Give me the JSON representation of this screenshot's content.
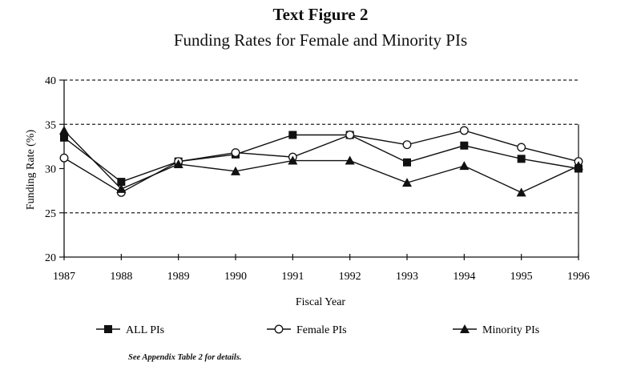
{
  "header": {
    "title": "Text Figure 2",
    "subtitle": "Funding Rates for Female and Minority PIs"
  },
  "footnote": "See Appendix Table 2 for details.",
  "chart_data": {
    "type": "line",
    "title": "Funding Rates for Female and Minority PIs",
    "xlabel": "Fiscal Year",
    "ylabel": "Funding Rate (%)",
    "ylim": [
      20,
      40
    ],
    "yticks": [
      "20",
      "25",
      "30",
      "35",
      "40"
    ],
    "gridlines": "dashed at 25, 35, 40",
    "legend_position": "bottom",
    "categories": [
      "1987",
      "1988",
      "1989",
      "1990",
      "1991",
      "1992",
      "1993",
      "1994",
      "1995",
      "1996"
    ],
    "series": [
      {
        "name": "ALL PIs",
        "marker": "square",
        "values": [
          33.5,
          28.5,
          30.8,
          31.6,
          33.8,
          33.8,
          30.7,
          32.6,
          31.1,
          30.0
        ]
      },
      {
        "name": "Female PIs",
        "marker": "circle",
        "values": [
          31.2,
          27.3,
          30.8,
          31.8,
          31.3,
          33.8,
          32.7,
          34.3,
          32.4,
          30.8
        ]
      },
      {
        "name": "Minority PIs",
        "marker": "triangle",
        "values": [
          34.3,
          27.7,
          30.5,
          29.7,
          30.9,
          30.9,
          28.4,
          30.3,
          27.3,
          30.3
        ]
      }
    ]
  }
}
